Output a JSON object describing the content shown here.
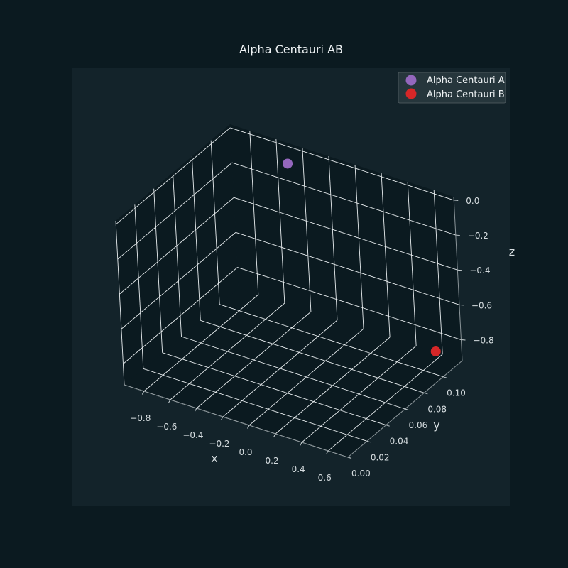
{
  "chart_data": {
    "type": "scatter3d",
    "title": "Alpha Centauri AB",
    "xlabel": "x",
    "ylabel": "y",
    "zlabel": "z",
    "xlim": [
      -0.95,
      0.75
    ],
    "ylim": [
      0.0,
      0.12
    ],
    "zlim": [
      -0.92,
      0.02
    ],
    "xticks": [
      -0.8,
      -0.6,
      -0.4,
      -0.2,
      0.0,
      0.2,
      0.4,
      0.6
    ],
    "xtick_labels": [
      "−0.8",
      "−0.6",
      "−0.4",
      "−0.2",
      "0.0",
      "0.2",
      "0.4",
      "0.6"
    ],
    "yticks": [
      0.0,
      0.02,
      0.04,
      0.06,
      0.08,
      0.1
    ],
    "ytick_labels": [
      "0.00",
      "0.02",
      "0.04",
      "0.06",
      "0.08",
      "0.10"
    ],
    "zticks": [
      0.0,
      -0.2,
      -0.4,
      -0.6,
      -0.8
    ],
    "ztick_labels": [
      "0.0",
      "−0.2",
      "−0.4",
      "−0.6",
      "−0.8"
    ],
    "grid": true,
    "legend_position": "top-right",
    "series": [
      {
        "name": "Alpha Centauri A",
        "color": "#9467bd",
        "points": [
          {
            "x": -0.49,
            "y": 0.116,
            "z": -0.075
          }
        ]
      },
      {
        "name": "Alpha Centauri B",
        "color": "#d62728",
        "points": [
          {
            "x": 0.58,
            "y": 0.116,
            "z": -0.89
          }
        ]
      }
    ]
  },
  "colors": {
    "background": "#0b1a20",
    "axes_background": "#13232a",
    "pane": "#0b1a20",
    "grid": "#e8edef",
    "text": "#d6dde0"
  }
}
